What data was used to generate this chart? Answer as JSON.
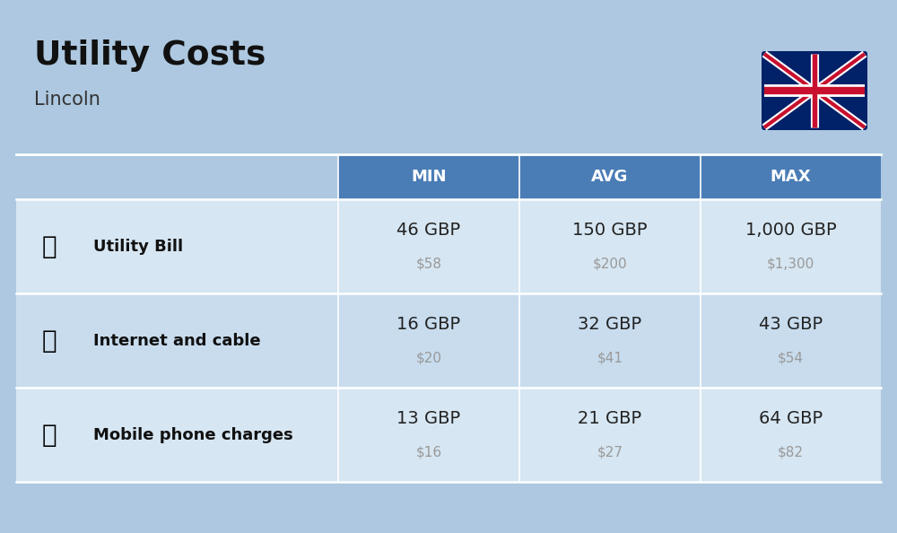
{
  "title": "Utility Costs",
  "subtitle": "Lincoln",
  "bg_color": "#adc8e0",
  "header_color": "#4a7db5",
  "header_text_color": "#ffffff",
  "row_colors": [
    "#d6e6f2",
    "#c8dcee"
  ],
  "cell_text_color": "#222222",
  "usd_text_color": "#999999",
  "col_headers": [
    "MIN",
    "AVG",
    "MAX"
  ],
  "rows": [
    {
      "label": "Utility Bill",
      "values_gbp": [
        "46 GBP",
        "150 GBP",
        "1,000 GBP"
      ],
      "values_usd": [
        "$58",
        "$200",
        "$1,300"
      ]
    },
    {
      "label": "Internet and cable",
      "values_gbp": [
        "16 GBP",
        "32 GBP",
        "43 GBP"
      ],
      "values_usd": [
        "$20",
        "$41",
        "$54"
      ]
    },
    {
      "label": "Mobile phone charges",
      "values_gbp": [
        "13 GBP",
        "21 GBP",
        "64 GBP"
      ],
      "values_usd": [
        "$16",
        "$27",
        "$82"
      ]
    }
  ],
  "flag_blue": "#012169",
  "flag_red": "#C8102E"
}
